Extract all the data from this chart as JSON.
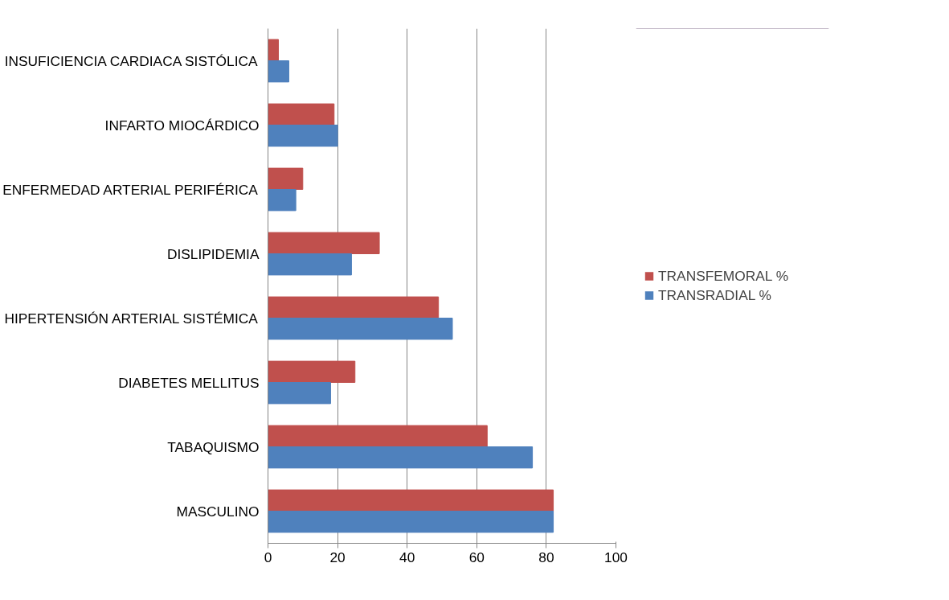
{
  "chart_data": {
    "type": "bar",
    "orientation": "horizontal",
    "categories": [
      "INSUFICIENCIA CARDIACA SISTÓLICA",
      "INFARTO MIOCÁRDICO",
      "ENFERMEDAD ARTERIAL PERIFÉRICA",
      "DISLIPIDEMIA",
      "HIPERTENSIÓN ARTERIAL SISTÉMICA",
      "DIABETES MELLITUS",
      "TABAQUISMO",
      "MASCULINO"
    ],
    "series": [
      {
        "name": "TRANSFEMORAL %",
        "color": "#c0504d",
        "values": [
          3,
          19,
          10,
          32,
          49,
          25,
          63,
          82
        ]
      },
      {
        "name": "TRANSRADIAL %",
        "color": "#4f81bd",
        "values": [
          6,
          20,
          8,
          24,
          53,
          18,
          76,
          82
        ]
      }
    ],
    "xlim": [
      0,
      100
    ],
    "xticks": [
      0,
      20,
      40,
      60,
      80,
      100
    ],
    "grid": "x",
    "legend": "right"
  }
}
